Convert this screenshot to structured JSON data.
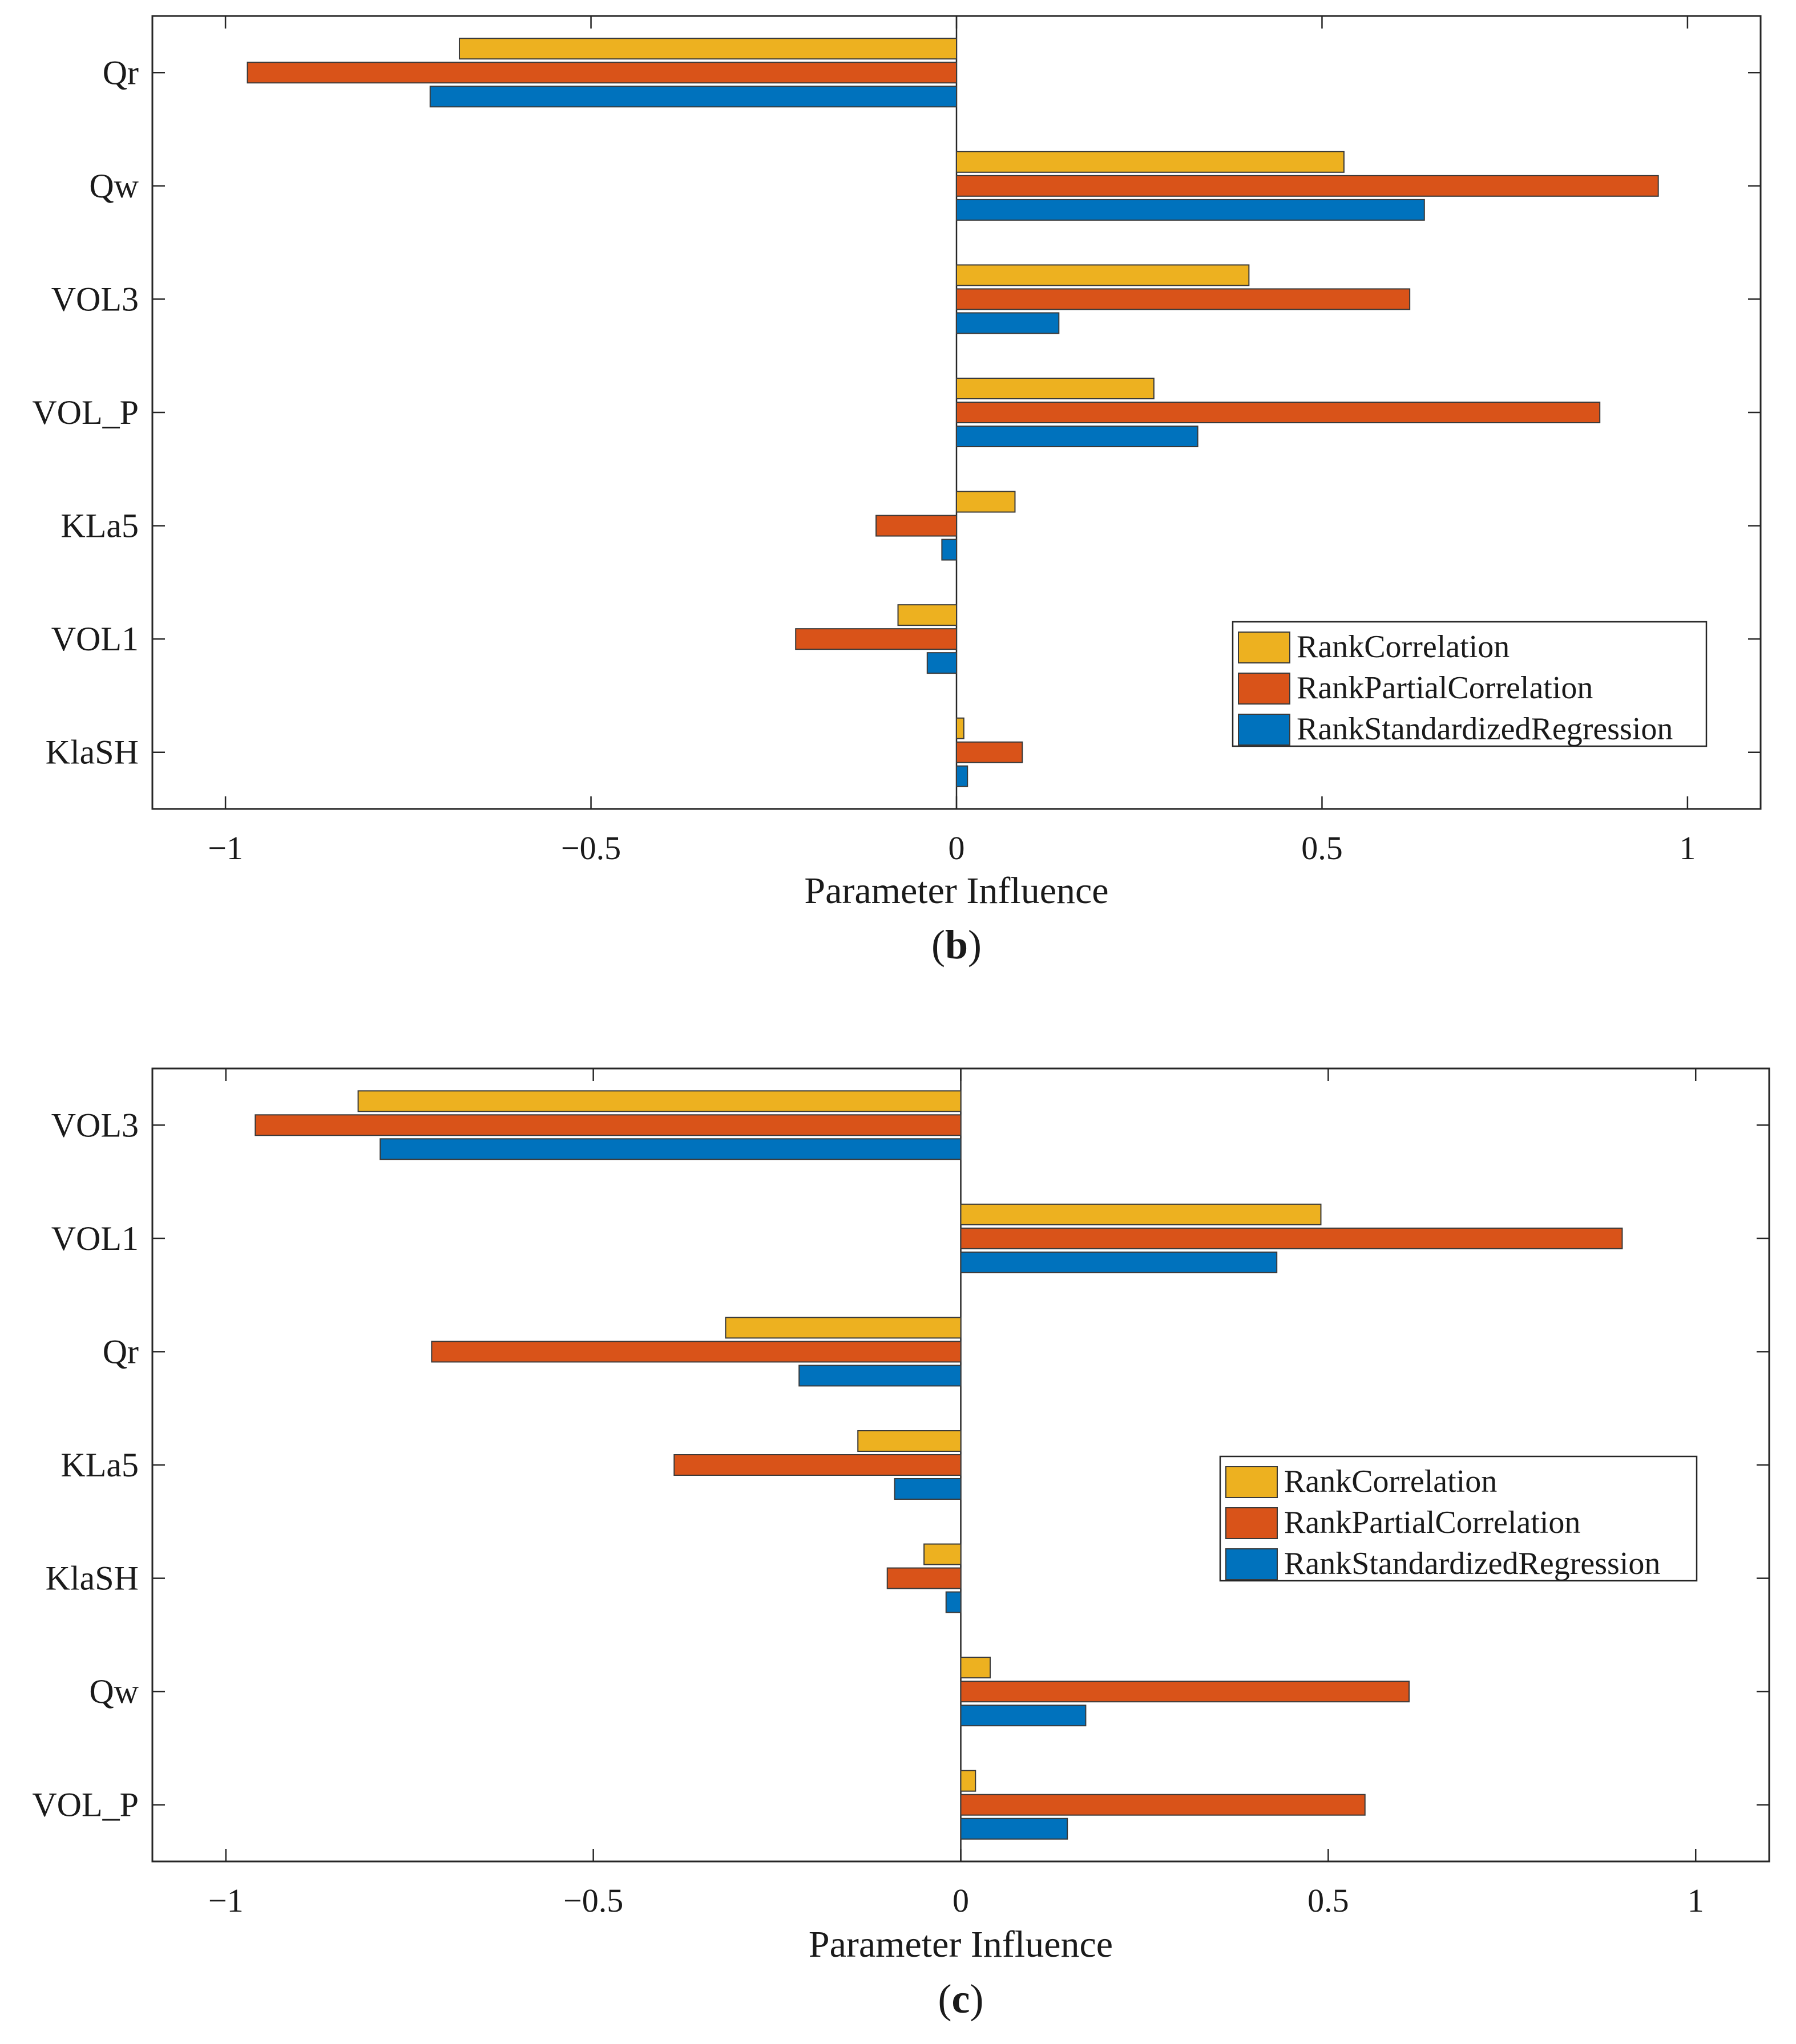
{
  "chart_data": [
    {
      "type": "bar",
      "orientation": "horizontal",
      "panel_label": "b",
      "categories": [
        "Qr",
        "Qw",
        "VOL3",
        "VOL_P",
        "KLa5",
        "VOL1",
        "KlaSH"
      ],
      "series": [
        {
          "name": "RankCorrelation",
          "color": "#EDB120",
          "values": [
            -0.68,
            0.53,
            0.4,
            0.27,
            0.08,
            -0.08,
            0.01
          ]
        },
        {
          "name": "RankPartialCorrelation",
          "color": "#D95319",
          "values": [
            -0.97,
            0.96,
            0.62,
            0.88,
            -0.11,
            -0.22,
            0.09
          ]
        },
        {
          "name": "RankStandardizedRegression",
          "color": "#0072BD",
          "values": [
            -0.72,
            0.64,
            0.14,
            0.33,
            -0.02,
            -0.04,
            0.015
          ]
        }
      ],
      "xlabel": "Parameter Influence",
      "ylabel": "",
      "xlim": [
        -1.1,
        1.1
      ],
      "xticks": [
        -1,
        -0.5,
        0,
        0.5,
        1
      ],
      "xtick_labels": [
        "−1",
        "−0.5",
        "0",
        "0.5",
        "1"
      ],
      "legend_position": "bottom-right",
      "grid": false
    },
    {
      "type": "bar",
      "orientation": "horizontal",
      "panel_label": "c",
      "categories": [
        "VOL3",
        "VOL1",
        "Qr",
        "KLa5",
        "KlaSH",
        "Qw",
        "VOL_P"
      ],
      "series": [
        {
          "name": "RankCorrelation",
          "color": "#EDB120",
          "values": [
            -0.82,
            0.49,
            -0.32,
            -0.14,
            -0.05,
            0.04,
            0.02
          ]
        },
        {
          "name": "RankPartialCorrelation",
          "color": "#D95319",
          "values": [
            -0.96,
            0.9,
            -0.72,
            -0.39,
            -0.1,
            0.61,
            0.55
          ]
        },
        {
          "name": "RankStandardizedRegression",
          "color": "#0072BD",
          "values": [
            -0.79,
            0.43,
            -0.22,
            -0.09,
            -0.02,
            0.17,
            0.145
          ]
        }
      ],
      "xlabel": "Parameter Influence",
      "ylabel": "",
      "xlim": [
        -1.1,
        1.1
      ],
      "xticks": [
        -1,
        -0.5,
        0,
        0.5,
        1
      ],
      "xtick_labels": [
        "−1",
        "−0.5",
        "0",
        "0.5",
        "1"
      ],
      "legend_position": "center-right",
      "grid": false
    }
  ]
}
